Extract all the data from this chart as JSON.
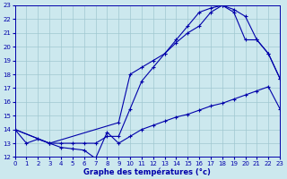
{
  "xlabel": "Graphe des températures (°c)",
  "xlim": [
    0,
    23
  ],
  "ylim": [
    12,
    23
  ],
  "ytick_vals": [
    12,
    13,
    14,
    15,
    16,
    17,
    18,
    19,
    20,
    21,
    22,
    23
  ],
  "xtick_vals": [
    0,
    1,
    2,
    3,
    4,
    5,
    6,
    7,
    8,
    9,
    10,
    11,
    12,
    13,
    14,
    15,
    16,
    17,
    18,
    19,
    20,
    21,
    22,
    23
  ],
  "bg_color": "#cce8ee",
  "line_color": "#0000aa",
  "grid_color": "#a0c8d0",
  "curve1_x": [
    0,
    1,
    2,
    3,
    4,
    5,
    6,
    7,
    8,
    9,
    10,
    11,
    12,
    13,
    14,
    15,
    16,
    17,
    18,
    19,
    20,
    21,
    22,
    23
  ],
  "curve1_y": [
    14.0,
    13.0,
    13.3,
    13.0,
    12.7,
    12.6,
    12.5,
    11.9,
    13.8,
    13.0,
    13.5,
    14.0,
    14.3,
    14.6,
    14.9,
    15.1,
    15.4,
    15.7,
    15.9,
    16.2,
    16.5,
    16.8,
    17.1,
    15.5
  ],
  "curve2_x": [
    0,
    3,
    4,
    5,
    6,
    7,
    8,
    9,
    10,
    11,
    12,
    13,
    14,
    15,
    16,
    17,
    18,
    19,
    20,
    21,
    22,
    23
  ],
  "curve2_y": [
    14.0,
    13.0,
    13.0,
    13.0,
    13.0,
    13.0,
    13.5,
    13.5,
    15.5,
    17.5,
    18.5,
    19.5,
    20.5,
    21.5,
    22.5,
    22.8,
    23.0,
    22.7,
    22.2,
    20.5,
    19.5,
    17.7
  ],
  "curve3_x": [
    0,
    3,
    9,
    10,
    11,
    12,
    13,
    14,
    15,
    16,
    17,
    18,
    19,
    20,
    21,
    22,
    23
  ],
  "curve3_y": [
    14.0,
    13.0,
    14.5,
    18.0,
    18.5,
    19.0,
    19.5,
    20.3,
    21.0,
    21.5,
    22.5,
    23.0,
    22.5,
    20.5,
    20.5,
    19.5,
    17.7
  ]
}
